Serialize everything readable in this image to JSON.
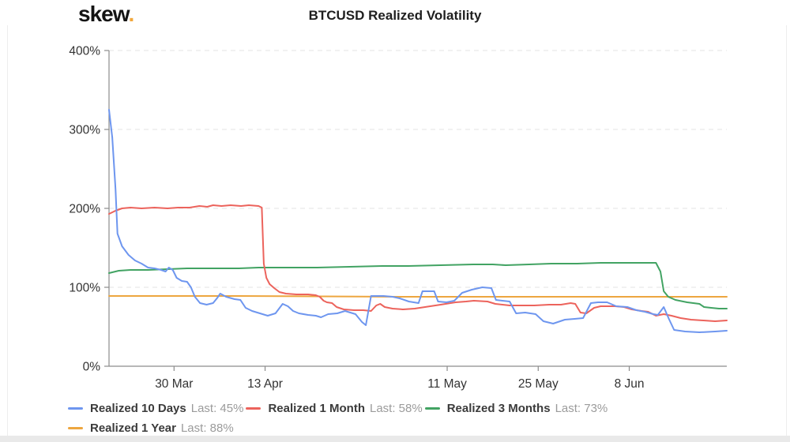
{
  "header": {
    "logo_text": "skew",
    "logo_dot": ".",
    "title": "BTCUSD Realized Volatility"
  },
  "colors": {
    "blue": "#6e96ef",
    "red": "#ec635c",
    "green": "#42a363",
    "orange": "#eda63f",
    "grid": "#e3e3e3",
    "axis": "#8c8c8c",
    "tick_label": "#333333",
    "legend_name": "#3b3b3b",
    "legend_value": "#9b9b9b",
    "logo_dot_color": "#f2a73b"
  },
  "legend": {
    "items": [
      {
        "name": "Realized 10 Days",
        "last": "Last: 45%",
        "color": "blue",
        "row": 0
      },
      {
        "name": "Realized 1 Month",
        "last": "Last: 58%",
        "color": "red",
        "row": 0
      },
      {
        "name": "Realized 3 Months",
        "last": "Last: 73%",
        "color": "green",
        "row": 0
      },
      {
        "name": "Realized 1 Year",
        "last": "Last: 88%",
        "color": "orange",
        "row": 1
      }
    ]
  },
  "chart_data": {
    "type": "line",
    "title": "BTCUSD Realized Volatility",
    "grid": "dashed-horizontal",
    "legend_position": "bottom-left",
    "y_axis": {
      "unit": "%",
      "range": [
        0,
        400
      ],
      "ticks": [
        0,
        100,
        200,
        300,
        400
      ],
      "tick_labels": [
        "0%",
        "100%",
        "200%",
        "300%",
        "400%"
      ]
    },
    "x_axis": {
      "domain_days": [
        0,
        95
      ],
      "ticks": [
        {
          "label": "30 Mar",
          "day": 10
        },
        {
          "label": "13 Apr",
          "day": 24
        },
        {
          "label": "11 May",
          "day": 52
        },
        {
          "label": "25 May",
          "day": 66
        },
        {
          "label": "8 Jun",
          "day": 80
        }
      ]
    },
    "series": [
      {
        "name": "Realized 1 Year",
        "color": "orange",
        "last": 88,
        "points": [
          [
            0,
            89
          ],
          [
            20,
            89
          ],
          [
            45,
            88
          ],
          [
            95,
            88
          ]
        ]
      },
      {
        "name": "Realized 3 Months",
        "color": "green",
        "last": 73,
        "points": [
          [
            0,
            118
          ],
          [
            1.5,
            121
          ],
          [
            3.3,
            122
          ],
          [
            6,
            122
          ],
          [
            9,
            123
          ],
          [
            12,
            124
          ],
          [
            16,
            124
          ],
          [
            20,
            124
          ],
          [
            23,
            125
          ],
          [
            27,
            125
          ],
          [
            32,
            125
          ],
          [
            37,
            126
          ],
          [
            42,
            127
          ],
          [
            46,
            127
          ],
          [
            51,
            128
          ],
          [
            56,
            129
          ],
          [
            59,
            129
          ],
          [
            61,
            128
          ],
          [
            64.6,
            129
          ],
          [
            68,
            130
          ],
          [
            72,
            130
          ],
          [
            75.6,
            131
          ],
          [
            80,
            131
          ],
          [
            84.1,
            131
          ],
          [
            84.8,
            120
          ],
          [
            85.3,
            95
          ],
          [
            86,
            88
          ],
          [
            87.1,
            84
          ],
          [
            88.9,
            81
          ],
          [
            90.8,
            79
          ],
          [
            91.5,
            75
          ],
          [
            92.6,
            74
          ],
          [
            93.8,
            73
          ],
          [
            95,
            73
          ]
        ]
      },
      {
        "name": "Realized 1 Month",
        "color": "red",
        "last": 58,
        "points": [
          [
            0,
            193
          ],
          [
            1,
            197
          ],
          [
            2,
            200
          ],
          [
            3.3,
            201
          ],
          [
            5,
            200
          ],
          [
            7,
            201
          ],
          [
            9,
            200
          ],
          [
            10.6,
            201
          ],
          [
            12.4,
            201
          ],
          [
            13.9,
            203
          ],
          [
            15.1,
            202
          ],
          [
            16,
            204
          ],
          [
            17.3,
            203
          ],
          [
            18.7,
            204
          ],
          [
            20.3,
            203
          ],
          [
            21.5,
            204
          ],
          [
            23,
            203
          ],
          [
            23.5,
            201
          ],
          [
            23.8,
            130
          ],
          [
            24.2,
            112
          ],
          [
            24.7,
            104
          ],
          [
            25.4,
            99
          ],
          [
            26.2,
            94
          ],
          [
            27.2,
            92
          ],
          [
            28.8,
            91
          ],
          [
            30.6,
            91
          ],
          [
            31.8,
            90
          ],
          [
            32.4,
            88
          ],
          [
            33,
            83
          ],
          [
            33.5,
            81
          ],
          [
            34.3,
            80
          ],
          [
            35,
            75
          ],
          [
            36.1,
            72
          ],
          [
            37.7,
            71
          ],
          [
            39.1,
            71
          ],
          [
            40.3,
            70
          ],
          [
            41.1,
            77
          ],
          [
            41.7,
            79
          ],
          [
            42.4,
            75
          ],
          [
            43.6,
            73
          ],
          [
            45.2,
            72
          ],
          [
            47,
            73
          ],
          [
            49.4,
            76
          ],
          [
            51,
            78
          ],
          [
            53.3,
            81
          ],
          [
            54.9,
            82
          ],
          [
            56.1,
            83
          ],
          [
            58.2,
            82
          ],
          [
            59.4,
            79
          ],
          [
            61.6,
            77
          ],
          [
            63.7,
            77
          ],
          [
            65.4,
            77
          ],
          [
            67.7,
            78
          ],
          [
            69.5,
            78
          ],
          [
            71,
            80
          ],
          [
            71.7,
            79
          ],
          [
            72.5,
            68
          ],
          [
            73.4,
            67
          ],
          [
            74.6,
            74
          ],
          [
            75.6,
            76
          ],
          [
            77.8,
            76
          ],
          [
            79.2,
            75
          ],
          [
            80.4,
            72
          ],
          [
            81.9,
            70
          ],
          [
            82.9,
            69
          ],
          [
            84.1,
            64
          ],
          [
            85.3,
            66
          ],
          [
            86.5,
            64
          ],
          [
            87.9,
            61
          ],
          [
            89.5,
            59
          ],
          [
            91.4,
            58
          ],
          [
            93.2,
            57
          ],
          [
            95,
            58
          ]
        ]
      },
      {
        "name": "Realized 10 Days",
        "color": "blue",
        "last": 45,
        "points": [
          [
            0,
            325
          ],
          [
            0.5,
            290
          ],
          [
            1,
            225
          ],
          [
            1.3,
            168
          ],
          [
            2,
            152
          ],
          [
            3,
            141
          ],
          [
            4,
            134
          ],
          [
            5,
            130
          ],
          [
            6,
            125
          ],
          [
            7,
            124
          ],
          [
            8,
            122
          ],
          [
            8.7,
            120
          ],
          [
            9.2,
            125
          ],
          [
            9.8,
            122
          ],
          [
            10.4,
            112
          ],
          [
            11.2,
            108
          ],
          [
            12,
            107
          ],
          [
            12.6,
            100
          ],
          [
            13.2,
            88
          ],
          [
            14,
            80
          ],
          [
            15,
            78
          ],
          [
            16,
            80
          ],
          [
            16.6,
            86
          ],
          [
            17.1,
            92
          ],
          [
            18,
            88
          ],
          [
            19.3,
            85
          ],
          [
            20.2,
            84
          ],
          [
            21,
            74
          ],
          [
            22,
            70
          ],
          [
            23.2,
            67
          ],
          [
            24.4,
            64
          ],
          [
            25.6,
            67
          ],
          [
            26.7,
            79
          ],
          [
            27.5,
            76
          ],
          [
            28.3,
            70
          ],
          [
            29.2,
            67
          ],
          [
            30.6,
            65
          ],
          [
            31.8,
            64
          ],
          [
            32.6,
            62
          ],
          [
            33.7,
            66
          ],
          [
            35.1,
            67
          ],
          [
            36.3,
            70
          ],
          [
            37.9,
            66
          ],
          [
            38.9,
            56
          ],
          [
            39.5,
            52
          ],
          [
            40.3,
            89
          ],
          [
            42.2,
            89
          ],
          [
            43.6,
            88
          ],
          [
            44.7,
            86
          ],
          [
            46.1,
            82
          ],
          [
            47.6,
            80
          ],
          [
            48.2,
            95
          ],
          [
            50,
            95
          ],
          [
            50.6,
            82
          ],
          [
            51.9,
            81
          ],
          [
            53.1,
            83
          ],
          [
            54.3,
            93
          ],
          [
            55.8,
            97
          ],
          [
            57.4,
            100
          ],
          [
            58.8,
            99
          ],
          [
            59.5,
            84
          ],
          [
            61.6,
            82
          ],
          [
            62.6,
            67
          ],
          [
            64,
            68
          ],
          [
            65.6,
            66
          ],
          [
            66.8,
            57
          ],
          [
            68.3,
            54
          ],
          [
            70.1,
            59
          ],
          [
            71.6,
            60
          ],
          [
            72.9,
            61
          ],
          [
            74.1,
            80
          ],
          [
            75.2,
            81
          ],
          [
            76.6,
            81
          ],
          [
            78,
            76
          ],
          [
            79.7,
            75
          ],
          [
            81.1,
            71
          ],
          [
            82.4,
            69
          ],
          [
            83.7,
            66
          ],
          [
            84.4,
            65
          ],
          [
            85.3,
            75
          ],
          [
            86.1,
            60
          ],
          [
            86.9,
            46
          ],
          [
            88.6,
            44
          ],
          [
            90.8,
            43
          ],
          [
            93.2,
            44
          ],
          [
            95,
            45
          ]
        ]
      }
    ]
  }
}
